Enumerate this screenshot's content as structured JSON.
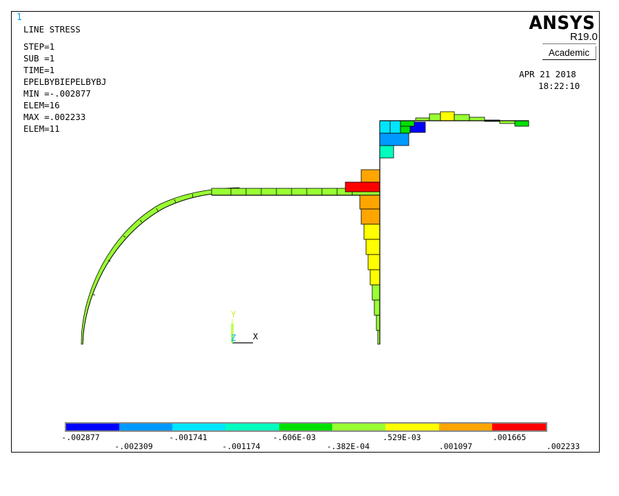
{
  "window": {
    "number": "1"
  },
  "plot_info": {
    "lines": [
      "LINE STRESS",
      "STEP=1",
      "SUB =1",
      "TIME=1",
      "EPELBYBIEPELBYBJ",
      "MIN =-.002877",
      "ELEM=16",
      "MAX =.002233",
      "ELEM=11"
    ]
  },
  "brand": {
    "name": "ANSYS",
    "version": "R19.0",
    "edition": "Academic"
  },
  "timestamp": {
    "date": "APR 21 2018",
    "time": "18:22:10"
  },
  "triad": {
    "y_label": "Y",
    "z_label": "Z",
    "x_label": "X"
  },
  "legend": {
    "colors": [
      "#0000ff",
      "#0099ff",
      "#00e5ff",
      "#00ffbf",
      "#00e000",
      "#99ff33",
      "#ffff00",
      "#ffa500",
      "#ff0000"
    ],
    "top_labels": [
      "-.002877",
      "-.001741",
      "-.606E-03",
      ".529E-03",
      ".001665"
    ],
    "bottom_labels": [
      "-.002309",
      "-.001174",
      "-.382E-04",
      ".001097",
      ".002233"
    ]
  }
}
